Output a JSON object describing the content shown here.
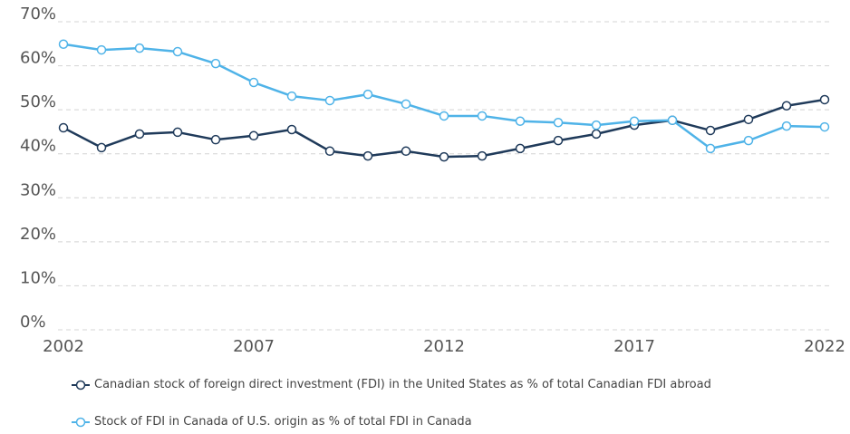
{
  "chart_data": {
    "type": "line",
    "x": [
      2002,
      2003,
      2004,
      2005,
      2006,
      2007,
      2008,
      2009,
      2010,
      2011,
      2012,
      2013,
      2014,
      2015,
      2016,
      2017,
      2018,
      2019,
      2020,
      2021,
      2022
    ],
    "series": [
      {
        "name": "Canadian stock of foreign direct investment (FDI) in the United States as % of total Canadian FDI abroad",
        "color": "#1f3a5a",
        "values": [
          45.9,
          41.4,
          44.5,
          44.9,
          43.2,
          44.1,
          45.5,
          40.6,
          39.5,
          40.6,
          39.3,
          39.5,
          41.2,
          43.0,
          44.5,
          46.5,
          47.6,
          45.3,
          47.8,
          50.9,
          52.3
        ]
      },
      {
        "name": "Stock of FDI in Canada of U.S. origin as % of total FDI in Canada",
        "color": "#4fb3e8",
        "values": [
          64.9,
          63.6,
          64.0,
          63.2,
          60.5,
          56.2,
          53.1,
          52.1,
          53.5,
          51.3,
          48.6,
          48.6,
          47.4,
          47.1,
          46.5,
          47.4,
          47.6,
          41.2,
          43.0,
          46.3,
          46.1
        ]
      }
    ],
    "xlim": [
      2002,
      2022
    ],
    "xticks": [
      2002,
      2007,
      2012,
      2017,
      2022
    ],
    "ylim": [
      0,
      70
    ],
    "yticks": [
      {
        "value": 0,
        "label": "0%"
      },
      {
        "value": 10,
        "label": "10%"
      },
      {
        "value": 20,
        "label": "20%"
      },
      {
        "value": 30,
        "label": "30%"
      },
      {
        "value": 40,
        "label": "40%"
      },
      {
        "value": 50,
        "label": "50%"
      },
      {
        "value": 60,
        "label": "60%"
      },
      {
        "value": 70,
        "label": "70%"
      }
    ],
    "grid": true
  }
}
